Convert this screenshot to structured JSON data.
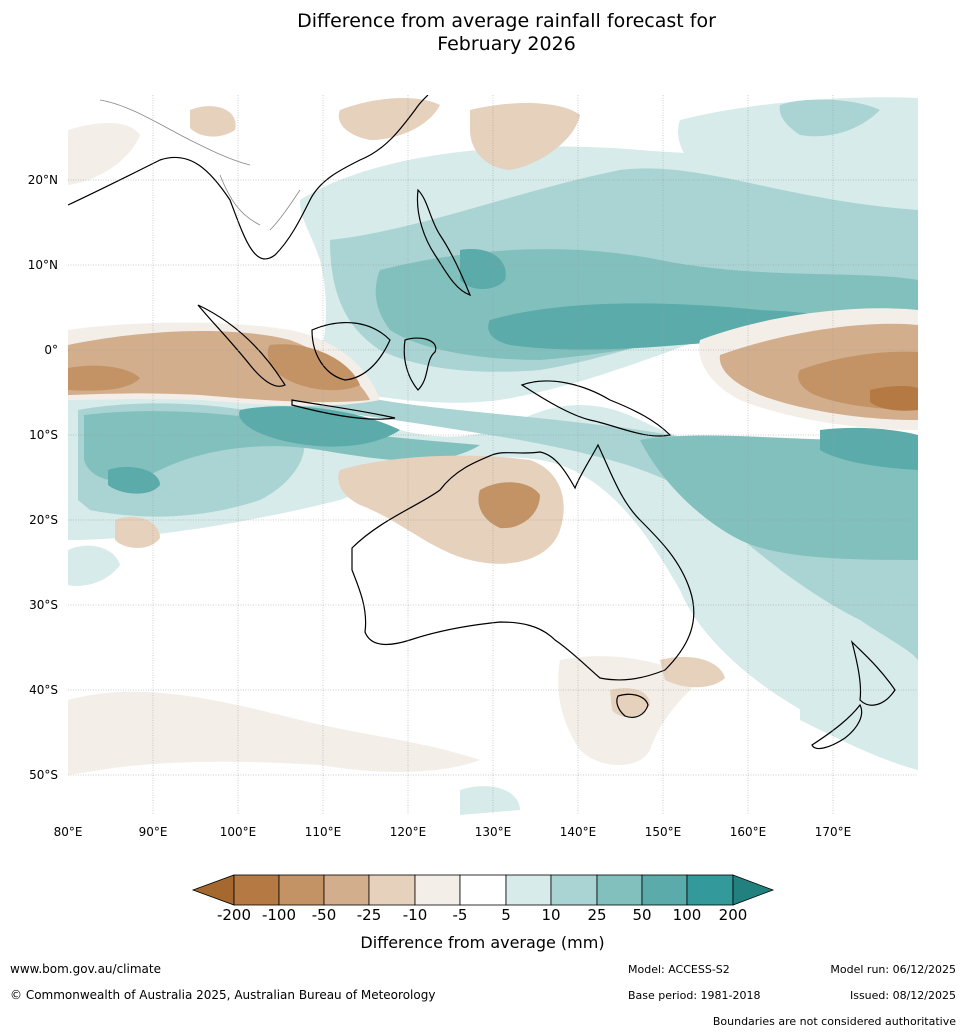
{
  "title_line1": "Difference from average rainfall forecast for",
  "title_line2": "February 2026",
  "lon_ticks": [
    "80°E",
    "90°E",
    "100°E",
    "110°E",
    "120°E",
    "130°E",
    "140°E",
    "150°E",
    "160°E",
    "170°E"
  ],
  "lat_ticks": [
    "20°N",
    "10°N",
    "0°",
    "10°S",
    "20°S",
    "30°S",
    "40°S",
    "50°S"
  ],
  "colorbar": {
    "title": "Difference from average (mm)",
    "labels": [
      "-200",
      "-100",
      "-50",
      "-25",
      "-10",
      "-5",
      "5",
      "10",
      "25",
      "50",
      "100",
      "200"
    ],
    "colors": [
      "#a5692f",
      "#b57a44",
      "#c39366",
      "#d2ae8c",
      "#e6d1bd",
      "#f3eee8",
      "#ffffff",
      "#d6ebea",
      "#a9d4d3",
      "#82c0be",
      "#5aaba9",
      "#33999a",
      "#22807f"
    ]
  },
  "footer": {
    "website": "www.bom.gov.au/climate",
    "copyright": "© Commonwealth of Australia 2025, Australian Bureau of Meteorology",
    "model": "Model: ACCESS-S2",
    "model_run": "Model run: 06/12/2025",
    "base_period": "Base period: 1981-2018",
    "issued": "Issued: 08/12/2025",
    "boundaries": "Boundaries are not considered authoritative"
  }
}
